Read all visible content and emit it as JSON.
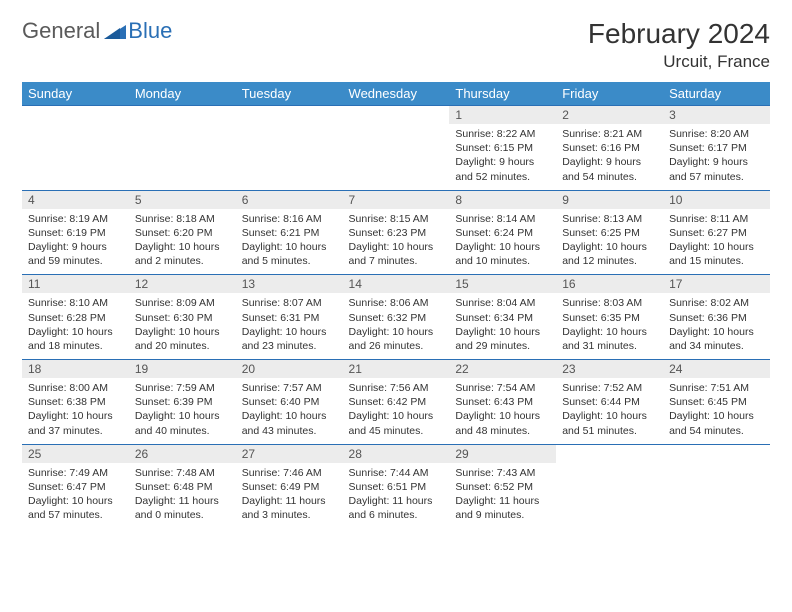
{
  "logo": {
    "general": "General",
    "blue": "Blue"
  },
  "header": {
    "title": "February 2024",
    "location": "Urcuit, France"
  },
  "colors": {
    "header_bg": "#3b8bc8",
    "header_text": "#ffffff",
    "daynum_bg": "#ececec",
    "rule": "#2a6fb5",
    "logo_gray": "#5a5a5a",
    "logo_blue": "#2a6fb5"
  },
  "columns": [
    "Sunday",
    "Monday",
    "Tuesday",
    "Wednesday",
    "Thursday",
    "Friday",
    "Saturday"
  ],
  "weeks": [
    [
      null,
      null,
      null,
      null,
      {
        "n": "1",
        "sr": "Sunrise: 8:22 AM",
        "ss": "Sunset: 6:15 PM",
        "dl": "Daylight: 9 hours and 52 minutes."
      },
      {
        "n": "2",
        "sr": "Sunrise: 8:21 AM",
        "ss": "Sunset: 6:16 PM",
        "dl": "Daylight: 9 hours and 54 minutes."
      },
      {
        "n": "3",
        "sr": "Sunrise: 8:20 AM",
        "ss": "Sunset: 6:17 PM",
        "dl": "Daylight: 9 hours and 57 minutes."
      }
    ],
    [
      {
        "n": "4",
        "sr": "Sunrise: 8:19 AM",
        "ss": "Sunset: 6:19 PM",
        "dl": "Daylight: 9 hours and 59 minutes."
      },
      {
        "n": "5",
        "sr": "Sunrise: 8:18 AM",
        "ss": "Sunset: 6:20 PM",
        "dl": "Daylight: 10 hours and 2 minutes."
      },
      {
        "n": "6",
        "sr": "Sunrise: 8:16 AM",
        "ss": "Sunset: 6:21 PM",
        "dl": "Daylight: 10 hours and 5 minutes."
      },
      {
        "n": "7",
        "sr": "Sunrise: 8:15 AM",
        "ss": "Sunset: 6:23 PM",
        "dl": "Daylight: 10 hours and 7 minutes."
      },
      {
        "n": "8",
        "sr": "Sunrise: 8:14 AM",
        "ss": "Sunset: 6:24 PM",
        "dl": "Daylight: 10 hours and 10 minutes."
      },
      {
        "n": "9",
        "sr": "Sunrise: 8:13 AM",
        "ss": "Sunset: 6:25 PM",
        "dl": "Daylight: 10 hours and 12 minutes."
      },
      {
        "n": "10",
        "sr": "Sunrise: 8:11 AM",
        "ss": "Sunset: 6:27 PM",
        "dl": "Daylight: 10 hours and 15 minutes."
      }
    ],
    [
      {
        "n": "11",
        "sr": "Sunrise: 8:10 AM",
        "ss": "Sunset: 6:28 PM",
        "dl": "Daylight: 10 hours and 18 minutes."
      },
      {
        "n": "12",
        "sr": "Sunrise: 8:09 AM",
        "ss": "Sunset: 6:30 PM",
        "dl": "Daylight: 10 hours and 20 minutes."
      },
      {
        "n": "13",
        "sr": "Sunrise: 8:07 AM",
        "ss": "Sunset: 6:31 PM",
        "dl": "Daylight: 10 hours and 23 minutes."
      },
      {
        "n": "14",
        "sr": "Sunrise: 8:06 AM",
        "ss": "Sunset: 6:32 PM",
        "dl": "Daylight: 10 hours and 26 minutes."
      },
      {
        "n": "15",
        "sr": "Sunrise: 8:04 AM",
        "ss": "Sunset: 6:34 PM",
        "dl": "Daylight: 10 hours and 29 minutes."
      },
      {
        "n": "16",
        "sr": "Sunrise: 8:03 AM",
        "ss": "Sunset: 6:35 PM",
        "dl": "Daylight: 10 hours and 31 minutes."
      },
      {
        "n": "17",
        "sr": "Sunrise: 8:02 AM",
        "ss": "Sunset: 6:36 PM",
        "dl": "Daylight: 10 hours and 34 minutes."
      }
    ],
    [
      {
        "n": "18",
        "sr": "Sunrise: 8:00 AM",
        "ss": "Sunset: 6:38 PM",
        "dl": "Daylight: 10 hours and 37 minutes."
      },
      {
        "n": "19",
        "sr": "Sunrise: 7:59 AM",
        "ss": "Sunset: 6:39 PM",
        "dl": "Daylight: 10 hours and 40 minutes."
      },
      {
        "n": "20",
        "sr": "Sunrise: 7:57 AM",
        "ss": "Sunset: 6:40 PM",
        "dl": "Daylight: 10 hours and 43 minutes."
      },
      {
        "n": "21",
        "sr": "Sunrise: 7:56 AM",
        "ss": "Sunset: 6:42 PM",
        "dl": "Daylight: 10 hours and 45 minutes."
      },
      {
        "n": "22",
        "sr": "Sunrise: 7:54 AM",
        "ss": "Sunset: 6:43 PM",
        "dl": "Daylight: 10 hours and 48 minutes."
      },
      {
        "n": "23",
        "sr": "Sunrise: 7:52 AM",
        "ss": "Sunset: 6:44 PM",
        "dl": "Daylight: 10 hours and 51 minutes."
      },
      {
        "n": "24",
        "sr": "Sunrise: 7:51 AM",
        "ss": "Sunset: 6:45 PM",
        "dl": "Daylight: 10 hours and 54 minutes."
      }
    ],
    [
      {
        "n": "25",
        "sr": "Sunrise: 7:49 AM",
        "ss": "Sunset: 6:47 PM",
        "dl": "Daylight: 10 hours and 57 minutes."
      },
      {
        "n": "26",
        "sr": "Sunrise: 7:48 AM",
        "ss": "Sunset: 6:48 PM",
        "dl": "Daylight: 11 hours and 0 minutes."
      },
      {
        "n": "27",
        "sr": "Sunrise: 7:46 AM",
        "ss": "Sunset: 6:49 PM",
        "dl": "Daylight: 11 hours and 3 minutes."
      },
      {
        "n": "28",
        "sr": "Sunrise: 7:44 AM",
        "ss": "Sunset: 6:51 PM",
        "dl": "Daylight: 11 hours and 6 minutes."
      },
      {
        "n": "29",
        "sr": "Sunrise: 7:43 AM",
        "ss": "Sunset: 6:52 PM",
        "dl": "Daylight: 11 hours and 9 minutes."
      },
      null,
      null
    ]
  ]
}
